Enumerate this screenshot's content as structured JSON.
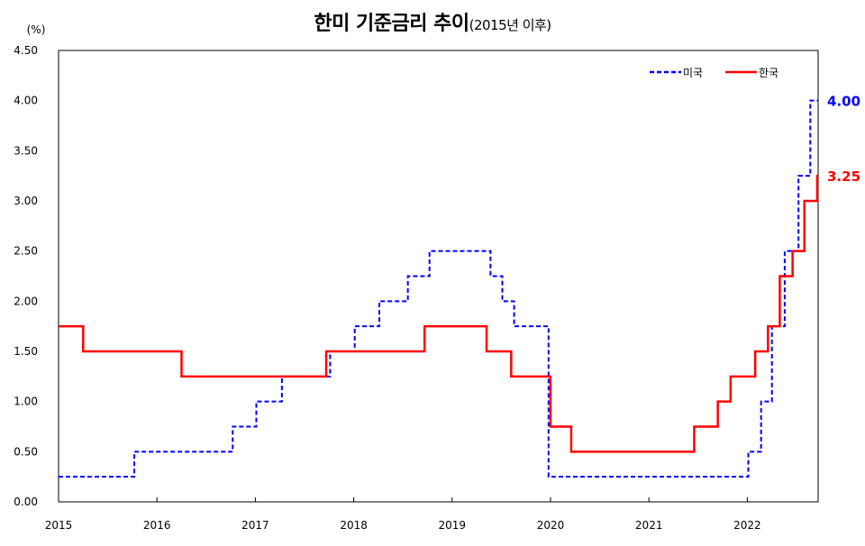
{
  "chart_data": {
    "type": "line",
    "step": true,
    "title": "한미 기준금리 추이",
    "subtitle": "(2015년 이후)",
    "ylabel": "(%)",
    "xlabel": "",
    "xlim": [
      2015,
      2022.77
    ],
    "ylim": [
      0,
      4.5
    ],
    "x_ticks": [
      "2015",
      "2016",
      "2017",
      "2018",
      "2019",
      "2020",
      "2021",
      "2022"
    ],
    "y_ticks": [
      "0.00",
      "0.50",
      "1.00",
      "1.50",
      "2.00",
      "2.50",
      "3.00",
      "3.50",
      "4.00",
      "4.50"
    ],
    "grid": false,
    "legend": "top-right",
    "series": [
      {
        "name": "미국",
        "color": "#0000FF",
        "style": "dashed",
        "end_label": "4.00",
        "points": [
          [
            2015.0,
            0.25
          ],
          [
            2015.77,
            0.5
          ],
          [
            2016.77,
            0.75
          ],
          [
            2017.01,
            1.0
          ],
          [
            2017.27,
            1.25
          ],
          [
            2017.76,
            1.5
          ],
          [
            2018.01,
            1.75
          ],
          [
            2018.26,
            2.0
          ],
          [
            2018.55,
            2.25
          ],
          [
            2018.77,
            2.5
          ],
          [
            2019.39,
            2.25
          ],
          [
            2019.51,
            2.0
          ],
          [
            2019.63,
            1.75
          ],
          [
            2019.98,
            0.25
          ],
          [
            2022.01,
            0.5
          ],
          [
            2022.14,
            1.0
          ],
          [
            2022.25,
            1.75
          ],
          [
            2022.38,
            2.5
          ],
          [
            2022.52,
            3.25
          ],
          [
            2022.64,
            4.0
          ],
          [
            2022.72,
            4.0
          ]
        ]
      },
      {
        "name": "한국",
        "color": "#FF0000",
        "style": "solid",
        "end_label": "3.25",
        "points": [
          [
            2015.0,
            1.75
          ],
          [
            2015.25,
            1.5
          ],
          [
            2016.25,
            1.25
          ],
          [
            2017.72,
            1.5
          ],
          [
            2018.72,
            1.75
          ],
          [
            2019.35,
            1.5
          ],
          [
            2019.6,
            1.25
          ],
          [
            2020.0,
            0.75
          ],
          [
            2020.21,
            0.5
          ],
          [
            2021.46,
            0.75
          ],
          [
            2021.7,
            1.0
          ],
          [
            2021.83,
            1.25
          ],
          [
            2022.08,
            1.5
          ],
          [
            2022.21,
            1.75
          ],
          [
            2022.33,
            2.25
          ],
          [
            2022.46,
            2.5
          ],
          [
            2022.58,
            3.0
          ],
          [
            2022.71,
            3.25
          ],
          [
            2022.72,
            3.25
          ]
        ]
      }
    ]
  }
}
